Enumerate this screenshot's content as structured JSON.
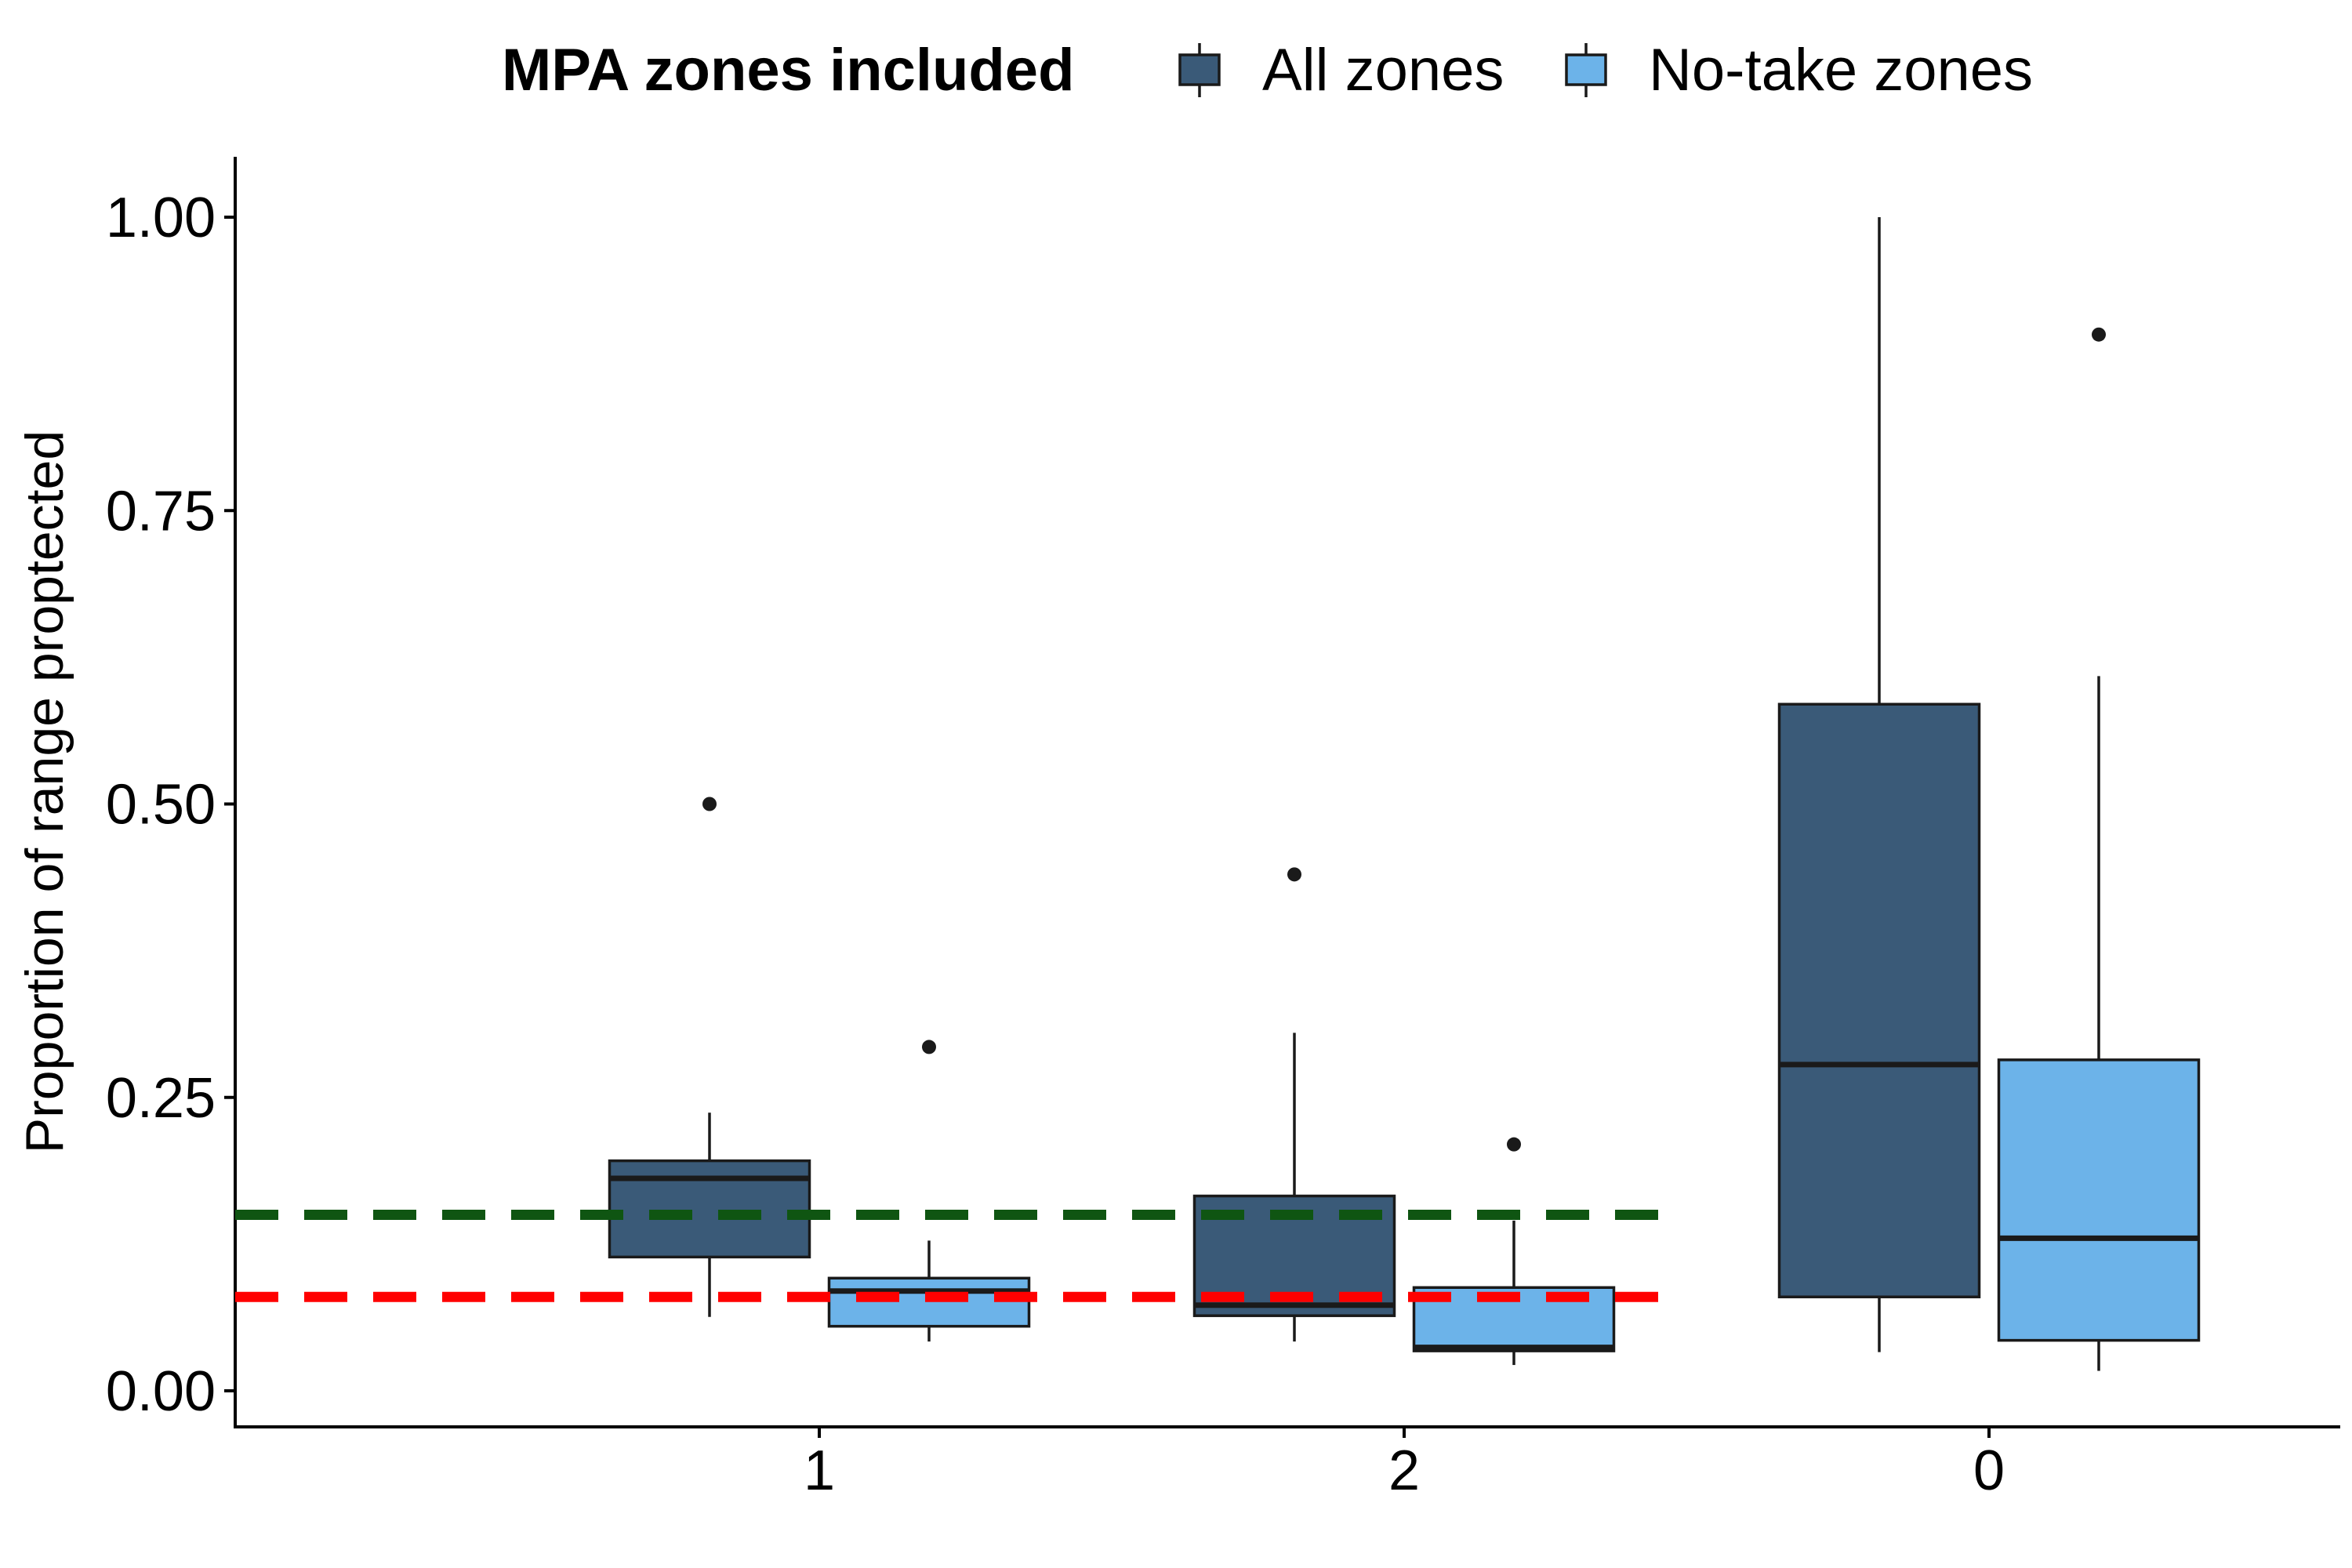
{
  "chart_data": {
    "type": "boxplot",
    "ylabel": "Proportion of range proptected",
    "xlabel": "",
    "ylim": [
      -0.03,
      1.05
    ],
    "y_ticks": [
      "0.00",
      "0.25",
      "0.50",
      "0.75",
      "1.00"
    ],
    "categories": [
      "1",
      "2",
      "0"
    ],
    "legend": {
      "title": "MPA zones included",
      "placement": "top"
    },
    "series": [
      {
        "name": "All zones",
        "color": "#3a5a78",
        "boxes": [
          {
            "category": "1",
            "lower_whisker": 0.063,
            "q1": 0.114,
            "median": 0.181,
            "q3": 0.196,
            "upper_whisker": 0.237,
            "outliers": [
              0.5
            ]
          },
          {
            "category": "2",
            "lower_whisker": 0.042,
            "q1": 0.064,
            "median": 0.073,
            "q3": 0.166,
            "upper_whisker": 0.305,
            "outliers": [
              0.44
            ]
          },
          {
            "category": "0",
            "lower_whisker": 0.033,
            "q1": 0.08,
            "median": 0.278,
            "q3": 0.585,
            "upper_whisker": 1.0,
            "outliers": []
          }
        ]
      },
      {
        "name": "No-take zones",
        "color": "#6cb3e9",
        "boxes": [
          {
            "category": "1",
            "lower_whisker": 0.042,
            "q1": 0.055,
            "median": 0.085,
            "q3": 0.096,
            "upper_whisker": 0.128,
            "outliers": [
              0.293
            ]
          },
          {
            "category": "2",
            "lower_whisker": 0.022,
            "q1": 0.034,
            "median": 0.037,
            "q3": 0.088,
            "upper_whisker": 0.145,
            "outliers": [
              0.21
            ]
          },
          {
            "category": "0",
            "lower_whisker": 0.017,
            "q1": 0.043,
            "median": 0.13,
            "q3": 0.282,
            "upper_whisker": 0.609,
            "outliers": [
              0.9
            ]
          }
        ]
      }
    ],
    "reference_lines": [
      {
        "y": 0.15,
        "color": "#0f5512",
        "style": "dashed",
        "x_extent_categories": [
          "1",
          "2"
        ]
      },
      {
        "y": 0.08,
        "color": "#ff0000",
        "style": "dashed",
        "x_extent_categories": [
          "1",
          "2"
        ]
      }
    ],
    "grid": false
  }
}
